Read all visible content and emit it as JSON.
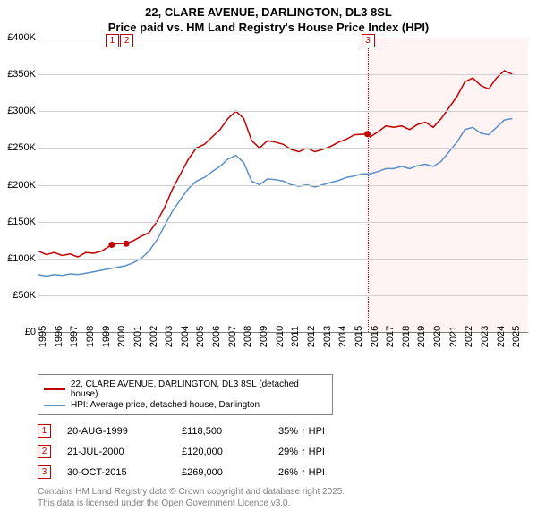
{
  "title": {
    "line1": "22, CLARE AVENUE, DARLINGTON, DL3 8SL",
    "line2": "Price paid vs. HM Land Registry's House Price Index (HPI)",
    "fontsize": 13,
    "color": "#000000"
  },
  "chart": {
    "type": "line",
    "background_color": "#ffffff",
    "grid_color": "#d0d0d0",
    "axis_color": "#808080",
    "xlim": [
      1995,
      2026
    ],
    "ylim": [
      0,
      400000
    ],
    "ytick_step": 50000,
    "yticks": [
      "£0",
      "£50K",
      "£100K",
      "£150K",
      "£200K",
      "£250K",
      "£300K",
      "£350K",
      "£400K"
    ],
    "xticks": [
      "1995",
      "1996",
      "1997",
      "1998",
      "1999",
      "2000",
      "2001",
      "2002",
      "2003",
      "2004",
      "2005",
      "2006",
      "2007",
      "2008",
      "2009",
      "2010",
      "2011",
      "2012",
      "2013",
      "2014",
      "2015",
      "2016",
      "2017",
      "2018",
      "2019",
      "2020",
      "2021",
      "2022",
      "2023",
      "2024",
      "2025"
    ],
    "tick_fontsize": 11,
    "shaded_from_year": 2015.83,
    "shaded_color": "rgba(255,200,200,0.22)",
    "markers": [
      {
        "label": "1",
        "year": 1999.64,
        "price": 118500
      },
      {
        "label": "2",
        "year": 2000.56,
        "price": 120000
      },
      {
        "label": "3",
        "year": 2015.83,
        "price": 269000
      }
    ],
    "series": [
      {
        "name": "price_paid",
        "label": "22, CLARE AVENUE, DARLINGTON, DL3 8SL (detached house)",
        "color": "#c00000",
        "line_width": 1.5,
        "points": [
          [
            1995,
            110000
          ],
          [
            1995.5,
            105000
          ],
          [
            1996,
            108000
          ],
          [
            1996.5,
            104000
          ],
          [
            1997,
            106000
          ],
          [
            1997.5,
            102000
          ],
          [
            1998,
            108000
          ],
          [
            1998.5,
            107000
          ],
          [
            1999,
            110000
          ],
          [
            1999.64,
            118500
          ],
          [
            2000,
            120000
          ],
          [
            2000.56,
            120000
          ],
          [
            2001,
            124000
          ],
          [
            2001.5,
            130000
          ],
          [
            2002,
            135000
          ],
          [
            2002.5,
            150000
          ],
          [
            2003,
            170000
          ],
          [
            2003.5,
            195000
          ],
          [
            2004,
            215000
          ],
          [
            2004.5,
            235000
          ],
          [
            2005,
            250000
          ],
          [
            2005.5,
            255000
          ],
          [
            2006,
            265000
          ],
          [
            2006.5,
            275000
          ],
          [
            2007,
            290000
          ],
          [
            2007.5,
            300000
          ],
          [
            2008,
            290000
          ],
          [
            2008.5,
            260000
          ],
          [
            2009,
            250000
          ],
          [
            2009.5,
            260000
          ],
          [
            2010,
            258000
          ],
          [
            2010.5,
            255000
          ],
          [
            2011,
            248000
          ],
          [
            2011.5,
            245000
          ],
          [
            2012,
            250000
          ],
          [
            2012.5,
            245000
          ],
          [
            2013,
            248000
          ],
          [
            2013.5,
            252000
          ],
          [
            2014,
            258000
          ],
          [
            2014.5,
            262000
          ],
          [
            2015,
            268000
          ],
          [
            2015.83,
            269000
          ],
          [
            2016,
            265000
          ],
          [
            2016.5,
            272000
          ],
          [
            2017,
            280000
          ],
          [
            2017.5,
            278000
          ],
          [
            2018,
            280000
          ],
          [
            2018.5,
            275000
          ],
          [
            2019,
            282000
          ],
          [
            2019.5,
            285000
          ],
          [
            2020,
            278000
          ],
          [
            2020.5,
            290000
          ],
          [
            2021,
            305000
          ],
          [
            2021.5,
            320000
          ],
          [
            2022,
            340000
          ],
          [
            2022.5,
            345000
          ],
          [
            2023,
            335000
          ],
          [
            2023.5,
            330000
          ],
          [
            2024,
            345000
          ],
          [
            2024.5,
            355000
          ],
          [
            2025,
            350000
          ]
        ]
      },
      {
        "name": "hpi",
        "label": "HPI: Average price, detached house, Darlington",
        "color": "#5b8fc7",
        "line_width": 1.5,
        "points": [
          [
            1995,
            78000
          ],
          [
            1995.5,
            76000
          ],
          [
            1996,
            78000
          ],
          [
            1996.5,
            77000
          ],
          [
            1997,
            79000
          ],
          [
            1997.5,
            78000
          ],
          [
            1998,
            80000
          ],
          [
            1998.5,
            82000
          ],
          [
            1999,
            84000
          ],
          [
            1999.5,
            86000
          ],
          [
            2000,
            88000
          ],
          [
            2000.5,
            90000
          ],
          [
            2001,
            94000
          ],
          [
            2001.5,
            100000
          ],
          [
            2002,
            110000
          ],
          [
            2002.5,
            125000
          ],
          [
            2003,
            145000
          ],
          [
            2003.5,
            165000
          ],
          [
            2004,
            180000
          ],
          [
            2004.5,
            195000
          ],
          [
            2005,
            205000
          ],
          [
            2005.5,
            210000
          ],
          [
            2006,
            218000
          ],
          [
            2006.5,
            225000
          ],
          [
            2007,
            235000
          ],
          [
            2007.5,
            240000
          ],
          [
            2008,
            230000
          ],
          [
            2008.5,
            205000
          ],
          [
            2009,
            200000
          ],
          [
            2009.5,
            208000
          ],
          [
            2010,
            207000
          ],
          [
            2010.5,
            205000
          ],
          [
            2011,
            200000
          ],
          [
            2011.5,
            198000
          ],
          [
            2012,
            200000
          ],
          [
            2012.5,
            197000
          ],
          [
            2013,
            200000
          ],
          [
            2013.5,
            203000
          ],
          [
            2014,
            206000
          ],
          [
            2014.5,
            210000
          ],
          [
            2015,
            212000
          ],
          [
            2015.5,
            215000
          ],
          [
            2016,
            215000
          ],
          [
            2016.5,
            218000
          ],
          [
            2017,
            222000
          ],
          [
            2017.5,
            222000
          ],
          [
            2018,
            225000
          ],
          [
            2018.5,
            222000
          ],
          [
            2019,
            226000
          ],
          [
            2019.5,
            228000
          ],
          [
            2020,
            225000
          ],
          [
            2020.5,
            232000
          ],
          [
            2021,
            245000
          ],
          [
            2021.5,
            258000
          ],
          [
            2022,
            275000
          ],
          [
            2022.5,
            278000
          ],
          [
            2023,
            270000
          ],
          [
            2023.5,
            268000
          ],
          [
            2024,
            278000
          ],
          [
            2024.5,
            288000
          ],
          [
            2025,
            290000
          ]
        ]
      }
    ]
  },
  "legend": {
    "border_color": "#808080",
    "fontsize": 10,
    "items": [
      {
        "color": "#c00000",
        "label": "22, CLARE AVENUE, DARLINGTON, DL3 8SL (detached house)"
      },
      {
        "color": "#5b8fc7",
        "label": "HPI: Average price, detached house, Darlington"
      }
    ]
  },
  "events": [
    {
      "n": "1",
      "date": "20-AUG-1999",
      "price": "£118,500",
      "pct": "35% ↑ HPI"
    },
    {
      "n": "2",
      "date": "21-JUL-2000",
      "price": "£120,000",
      "pct": "29% ↑ HPI"
    },
    {
      "n": "3",
      "date": "30-OCT-2015",
      "price": "£269,000",
      "pct": "26% ↑ HPI"
    }
  ],
  "license": {
    "line1": "Contains HM Land Registry data © Crown copyright and database right 2025.",
    "line2": "This data is licensed under the Open Government Licence v3.0.",
    "color": "#808080"
  }
}
